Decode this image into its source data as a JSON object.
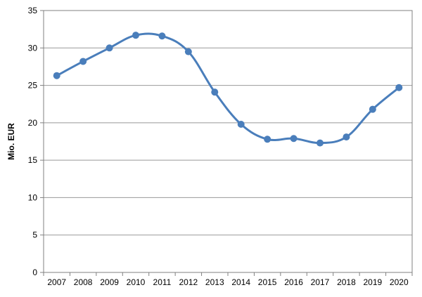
{
  "chart_data": {
    "type": "line",
    "title": "",
    "xlabel": "",
    "ylabel": "Mio. EUR",
    "categories": [
      "2007",
      "2008",
      "2009",
      "2010",
      "2011",
      "2012",
      "2013",
      "2014",
      "2015",
      "2016",
      "2017",
      "2018",
      "2019",
      "2020"
    ],
    "series": [
      {
        "values": [
          26.3,
          28.2,
          30.0,
          31.7,
          31.6,
          29.5,
          24.1,
          19.8,
          17.8,
          17.9,
          17.3,
          18.1,
          21.8,
          24.7
        ],
        "color": "#4a7ebb"
      }
    ],
    "ylim": [
      0,
      35
    ],
    "yticks": [
      "0",
      "5",
      "10",
      "15",
      "20",
      "25",
      "30",
      "35"
    ],
    "grid": true,
    "gridColor": "#999999"
  }
}
